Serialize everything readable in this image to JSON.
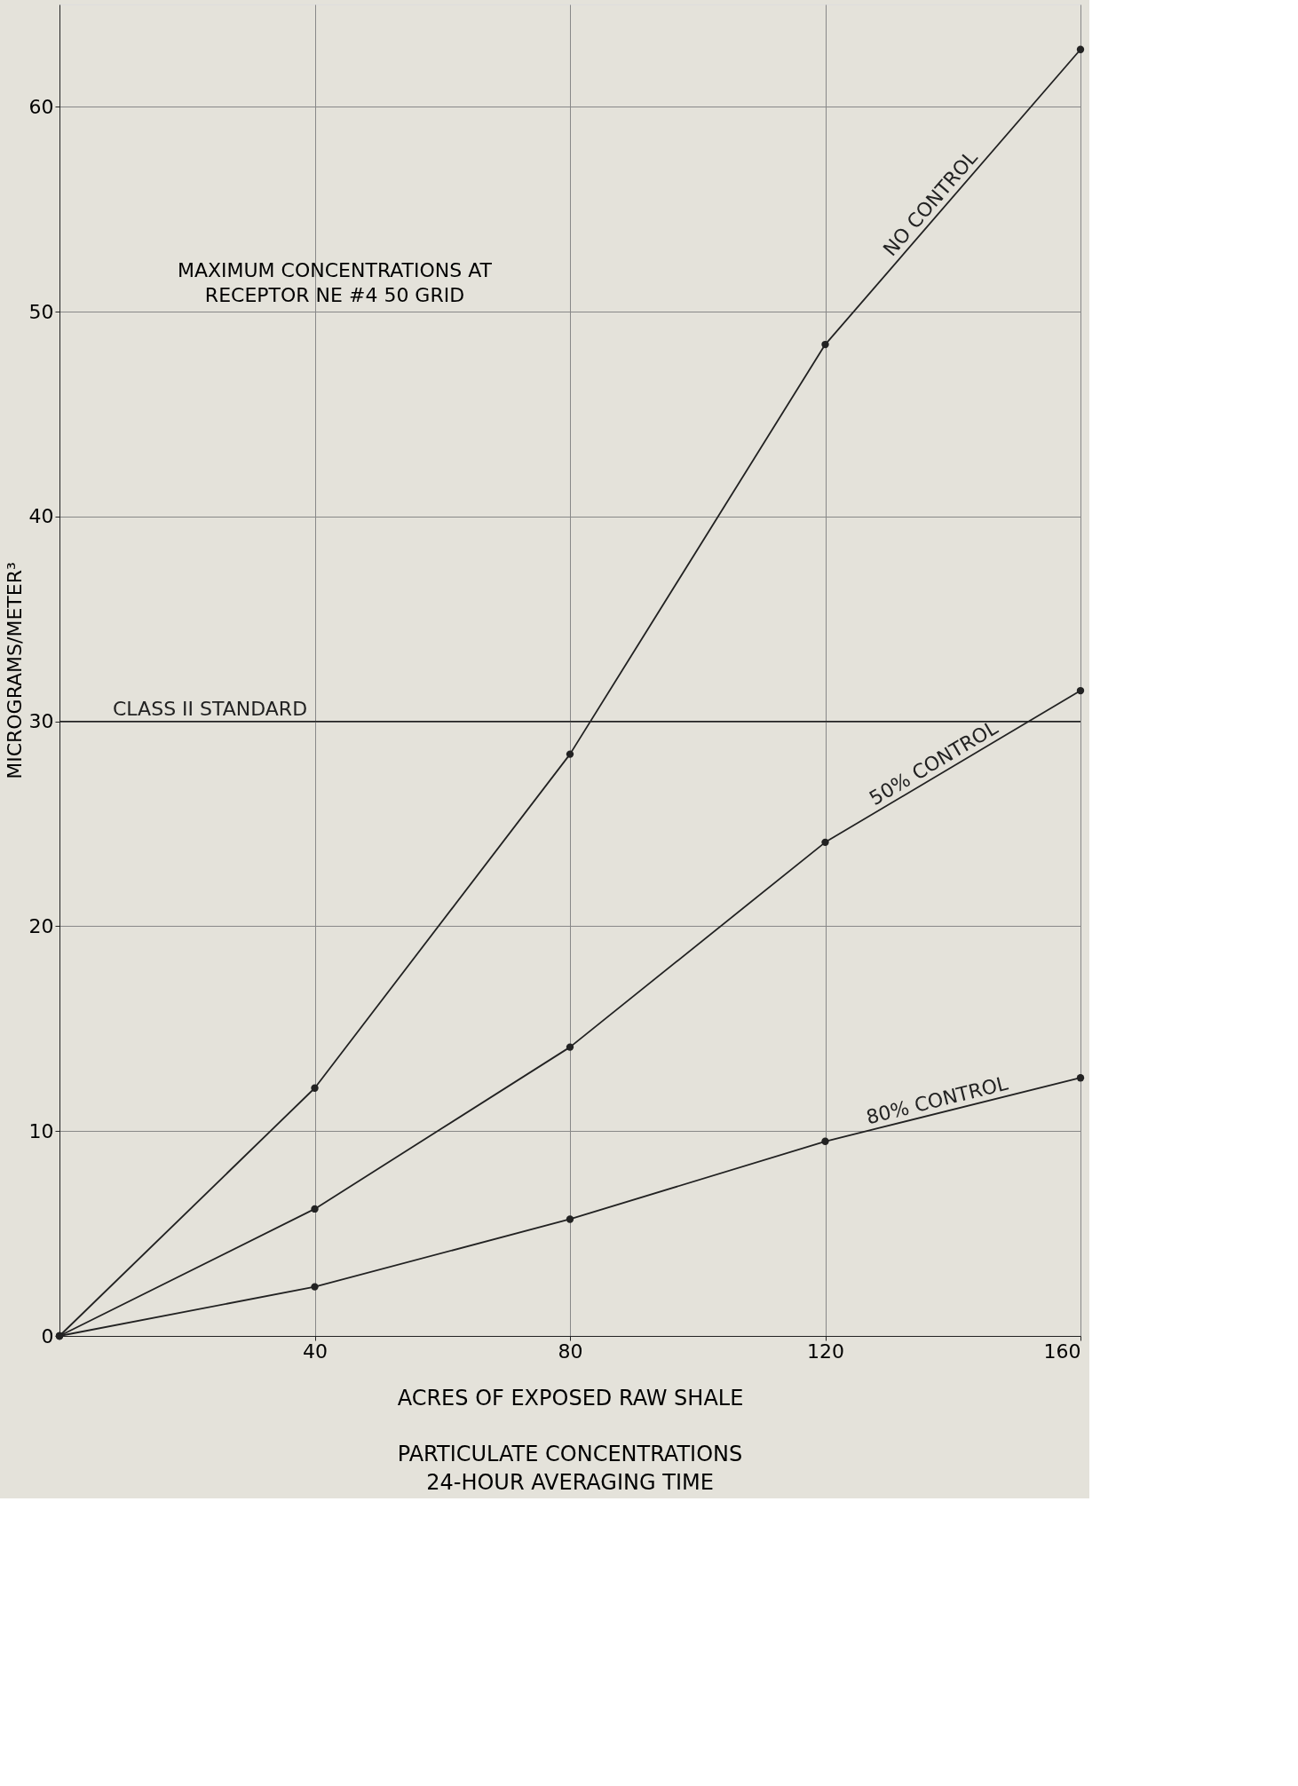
{
  "chart_data": {
    "type": "line",
    "title": "PARTICULATE CONCENTRATIONS\n24-HOUR AVERAGING TIME",
    "xlabel": "ACRES OF EXPOSED RAW SHALE",
    "ylabel": "MICROGRAMS/METER³",
    "annotations": [
      "MAXIMUM CONCENTRATIONS AT\nRECEPTOR NE #4 50 GRID"
    ],
    "x": [
      0,
      40,
      80,
      120,
      160
    ],
    "series": [
      {
        "name": "NO CONTROL",
        "color": "#222222",
        "values": [
          0,
          12.1,
          28.4,
          48.4,
          62.8
        ]
      },
      {
        "name": "50% CONTROL",
        "color": "#222222",
        "values": [
          0,
          6.2,
          14.1,
          24.1,
          31.5
        ]
      },
      {
        "name": "80% CONTROL",
        "color": "#222222",
        "values": [
          0,
          2.4,
          5.7,
          9.5,
          12.6
        ]
      }
    ],
    "xlim": [
      0,
      160
    ],
    "ylim": [
      0,
      65
    ],
    "xticks": [
      40,
      80,
      120,
      160
    ],
    "yticks": [
      0,
      10,
      20,
      30,
      40,
      50,
      60
    ],
    "ref_lines": [
      {
        "axis": "y",
        "value": 30,
        "label": "CLASS II STANDARD",
        "color": "#222222"
      }
    ],
    "grid": true,
    "marker": "circle",
    "line_style": "solid"
  }
}
